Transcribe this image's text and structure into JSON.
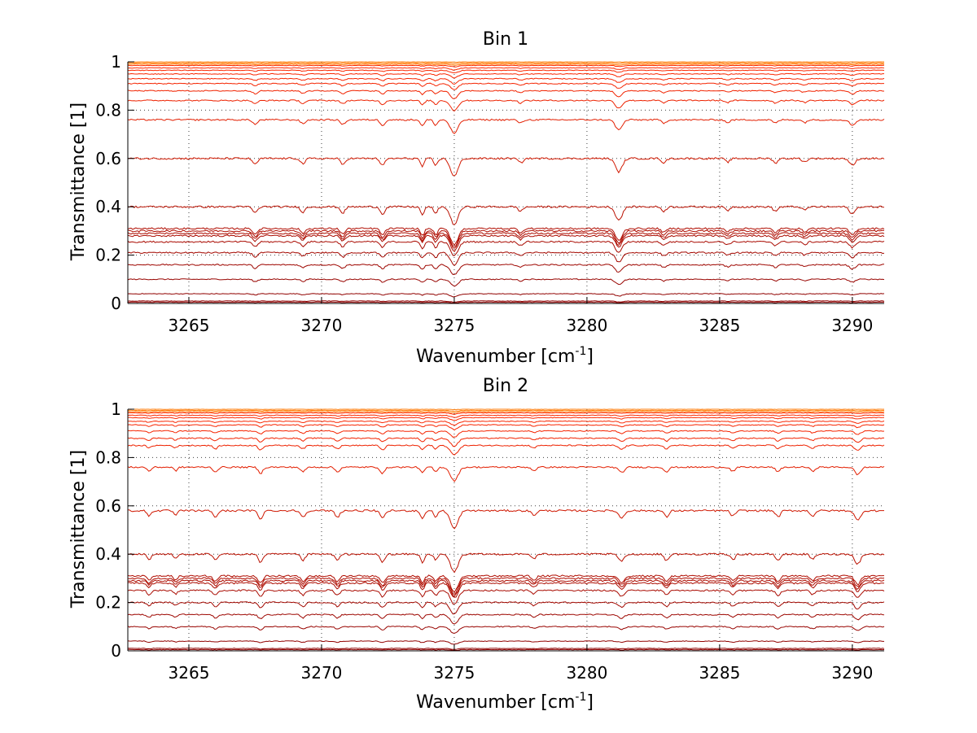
{
  "chart_data": [
    {
      "type": "line",
      "title": "Bin 1",
      "xlabel_main": "Wavenumber [cm",
      "xlabel_sup": "-1",
      "xlabel_end": "]",
      "ylabel": "Transmittance [1]",
      "xlim": [
        3262.7,
        3291.2
      ],
      "ylim": [
        0,
        1
      ],
      "xticks": [
        3265,
        3270,
        3275,
        3280,
        3285,
        3290
      ],
      "yticks": [
        0,
        0.2,
        0.4,
        0.6,
        0.8,
        1
      ],
      "xtick_labels": [
        "3265",
        "3270",
        "3275",
        "3280",
        "3285",
        "3290"
      ],
      "ytick_labels": [
        "0",
        "0.2",
        "0.4",
        "0.6",
        "0.8",
        "1"
      ],
      "grid": true,
      "baselines": [
        0.005,
        0.01,
        0.04,
        0.1,
        0.16,
        0.21,
        0.255,
        0.28,
        0.29,
        0.3,
        0.31,
        0.4,
        0.6,
        0.76,
        0.84,
        0.88,
        0.91,
        0.93,
        0.95,
        0.965,
        0.975,
        0.985,
        0.99,
        0.995,
        1.0
      ],
      "absorption_lines": [
        {
          "x": 3267.5,
          "depth": 0.35,
          "width": 0.12
        },
        {
          "x": 3269.3,
          "depth": 0.3,
          "width": 0.12
        },
        {
          "x": 3270.8,
          "depth": 0.35,
          "width": 0.12
        },
        {
          "x": 3272.3,
          "depth": 0.4,
          "width": 0.12
        },
        {
          "x": 3273.8,
          "depth": 0.45,
          "width": 0.1
        },
        {
          "x": 3274.3,
          "depth": 0.4,
          "width": 0.1
        },
        {
          "x": 3275.0,
          "depth": 1.0,
          "width": 0.2
        },
        {
          "x": 3277.5,
          "depth": 0.25,
          "width": 0.12
        },
        {
          "x": 3281.2,
          "depth": 0.75,
          "width": 0.18
        },
        {
          "x": 3282.9,
          "depth": 0.25,
          "width": 0.12
        },
        {
          "x": 3285.3,
          "depth": 0.2,
          "width": 0.12
        },
        {
          "x": 3287.1,
          "depth": 0.25,
          "width": 0.12
        },
        {
          "x": 3288.2,
          "depth": 0.2,
          "width": 0.12
        },
        {
          "x": 3290.0,
          "depth": 0.4,
          "width": 0.15
        }
      ]
    },
    {
      "type": "line",
      "title": "Bin 2",
      "xlabel_main": "Wavenumber [cm",
      "xlabel_sup": "-1",
      "xlabel_end": "]",
      "ylabel": "Transmittance [1]",
      "xlim": [
        3262.7,
        3291.2
      ],
      "ylim": [
        0,
        1
      ],
      "xticks": [
        3265,
        3270,
        3275,
        3280,
        3285,
        3290
      ],
      "yticks": [
        0,
        0.2,
        0.4,
        0.6,
        0.8,
        1
      ],
      "xtick_labels": [
        "3265",
        "3270",
        "3275",
        "3280",
        "3285",
        "3290"
      ],
      "ytick_labels": [
        "0",
        "0.2",
        "0.4",
        "0.6",
        "0.8",
        "1"
      ],
      "grid": true,
      "baselines": [
        0.005,
        0.01,
        0.04,
        0.1,
        0.15,
        0.2,
        0.25,
        0.28,
        0.29,
        0.3,
        0.31,
        0.4,
        0.58,
        0.76,
        0.85,
        0.88,
        0.91,
        0.935,
        0.95,
        0.965,
        0.975,
        0.985,
        0.99,
        0.995,
        1.0
      ],
      "absorption_lines": [
        {
          "x": 3263.5,
          "depth": 0.3,
          "width": 0.1
        },
        {
          "x": 3264.5,
          "depth": 0.25,
          "width": 0.1
        },
        {
          "x": 3266.0,
          "depth": 0.35,
          "width": 0.12
        },
        {
          "x": 3267.7,
          "depth": 0.45,
          "width": 0.12
        },
        {
          "x": 3269.3,
          "depth": 0.35,
          "width": 0.12
        },
        {
          "x": 3270.6,
          "depth": 0.35,
          "width": 0.12
        },
        {
          "x": 3272.3,
          "depth": 0.45,
          "width": 0.12
        },
        {
          "x": 3273.8,
          "depth": 0.45,
          "width": 0.1
        },
        {
          "x": 3274.3,
          "depth": 0.35,
          "width": 0.1
        },
        {
          "x": 3275.0,
          "depth": 1.0,
          "width": 0.2
        },
        {
          "x": 3278.0,
          "depth": 0.25,
          "width": 0.12
        },
        {
          "x": 3281.3,
          "depth": 0.4,
          "width": 0.15
        },
        {
          "x": 3283.0,
          "depth": 0.35,
          "width": 0.12
        },
        {
          "x": 3285.5,
          "depth": 0.3,
          "width": 0.12
        },
        {
          "x": 3287.2,
          "depth": 0.35,
          "width": 0.12
        },
        {
          "x": 3288.5,
          "depth": 0.3,
          "width": 0.12
        },
        {
          "x": 3290.2,
          "depth": 0.55,
          "width": 0.15
        }
      ]
    }
  ]
}
